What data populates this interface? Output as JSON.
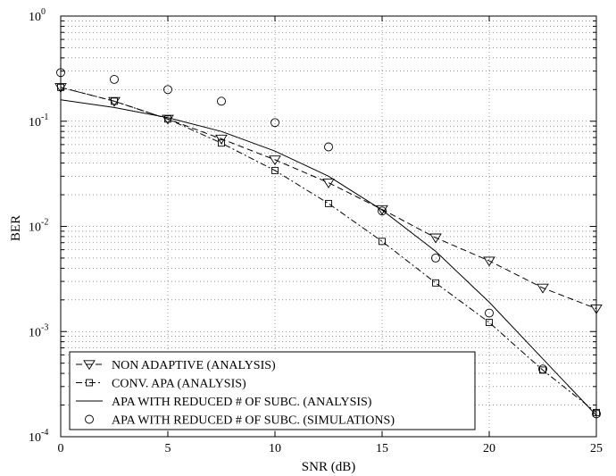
{
  "chart_data": {
    "type": "line",
    "title": "",
    "xlabel": "SNR (dB)",
    "ylabel": "BER",
    "xlim": [
      0,
      25
    ],
    "ylim": [
      0.0001,
      1
    ],
    "yscale": "log",
    "grid": true,
    "legend_position": "bottom-left",
    "x_ticks": [
      0,
      5,
      10,
      15,
      20,
      25
    ],
    "x_tick_labels": [
      "0",
      "5",
      "10",
      "15",
      "20",
      "25"
    ],
    "y_ticks": [
      {
        "value": 1,
        "base": "10",
        "exp": "0"
      },
      {
        "value": 0.1,
        "base": "10",
        "exp": "-1"
      },
      {
        "value": 0.01,
        "base": "10",
        "exp": "-2"
      },
      {
        "value": 0.001,
        "base": "10",
        "exp": "-3"
      },
      {
        "value": 0.0001,
        "base": "10",
        "exp": "-4"
      }
    ],
    "series": [
      {
        "name": "NON ADAPTIVE (ANALYSIS)",
        "line_style": "dashed",
        "marker": "triangle-down",
        "x": [
          0,
          2.5,
          5,
          7.5,
          10,
          12.5,
          15,
          17.5,
          20,
          22.5,
          25
        ],
        "y": [
          0.21,
          0.155,
          0.105,
          0.068,
          0.043,
          0.026,
          0.0145,
          0.0078,
          0.0047,
          0.0026,
          0.00165
        ]
      },
      {
        "name": "CONV. APA (ANALYSIS)",
        "line_style": "dashdot",
        "marker": "square",
        "x": [
          0,
          2.5,
          5,
          7.5,
          10,
          12.5,
          15,
          17.5,
          20,
          22.5,
          25
        ],
        "y": [
          0.21,
          0.155,
          0.105,
          0.062,
          0.034,
          0.0165,
          0.0072,
          0.0029,
          0.00122,
          0.00043,
          0.00017
        ]
      },
      {
        "name": "APA WITH REDUCED # OF SUBC. (ANALYSIS)",
        "line_style": "solid",
        "marker": "none",
        "x": [
          0,
          2.5,
          5,
          7.5,
          10,
          12.5,
          15,
          17.5,
          20,
          22.5,
          25
        ],
        "y": [
          0.16,
          0.135,
          0.108,
          0.08,
          0.052,
          0.03,
          0.0143,
          0.0058,
          0.0019,
          0.00055,
          0.00016
        ]
      },
      {
        "name": "APA WITH REDUCED # OF SUBC. (SIMULATIONS)",
        "line_style": "none",
        "marker": "circle",
        "x": [
          0,
          2.5,
          5,
          7.5,
          10,
          12.5,
          15,
          17.5,
          20,
          22.5,
          25
        ],
        "y": [
          0.29,
          0.25,
          0.2,
          0.155,
          0.097,
          0.057,
          0.014,
          0.005,
          0.0015,
          0.00044,
          0.000165
        ]
      }
    ]
  }
}
